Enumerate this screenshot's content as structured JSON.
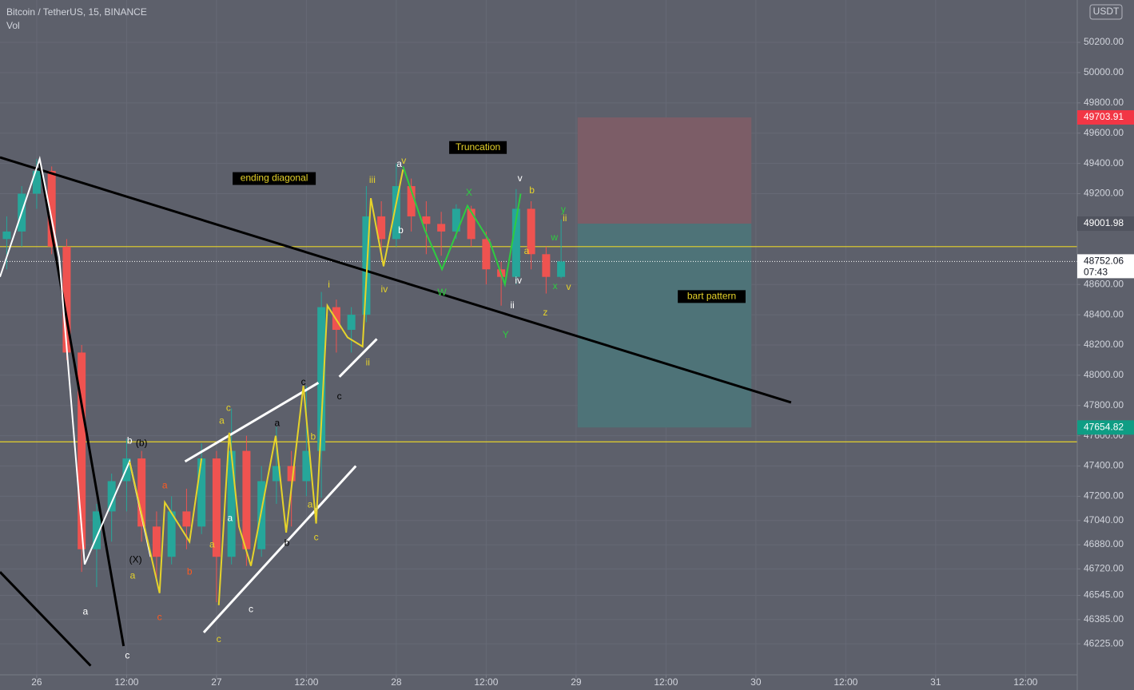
{
  "chart_data": {
    "type": "candlestick",
    "title": "Bitcoin / TetherUS, 15, BINANCE",
    "subtitle": "Vol",
    "currency": "USDT",
    "countdown": "07:43",
    "grid": true,
    "up_color": "#26a69a",
    "down_color": "#ef5350",
    "xlim": [
      -4.9,
      138.9
    ],
    "ylim": [
      46020,
      50480
    ],
    "xticks": [
      {
        "value": 0,
        "label": "26"
      },
      {
        "value": 12,
        "label": "12:00"
      },
      {
        "value": 24,
        "label": "27"
      },
      {
        "value": 36,
        "label": "12:00"
      },
      {
        "value": 48,
        "label": "28"
      },
      {
        "value": 60,
        "label": "12:00"
      },
      {
        "value": 72,
        "label": "29"
      },
      {
        "value": 84,
        "label": "12:00"
      },
      {
        "value": 96,
        "label": "30"
      },
      {
        "value": 108,
        "label": "12:00"
      },
      {
        "value": 120,
        "label": "31"
      },
      {
        "value": 132,
        "label": "12:00"
      }
    ],
    "yticks": [
      {
        "value": 50200,
        "label": "50200.00"
      },
      {
        "value": 50000,
        "label": "50000.00"
      },
      {
        "value": 49800,
        "label": "49800.00"
      },
      {
        "value": 49600,
        "label": "49600.00"
      },
      {
        "value": 49400,
        "label": "49400.00"
      },
      {
        "value": 49200,
        "label": "49200.00"
      },
      {
        "value": 48600,
        "label": "48600.00"
      },
      {
        "value": 48400,
        "label": "48400.00"
      },
      {
        "value": 48200,
        "label": "48200.00"
      },
      {
        "value": 48000,
        "label": "48000.00"
      },
      {
        "value": 47800,
        "label": "47800.00"
      },
      {
        "value": 47600,
        "label": "47600.00"
      },
      {
        "value": 47400,
        "label": "47400.00"
      },
      {
        "value": 47200,
        "label": "47200.00"
      },
      {
        "value": 47040,
        "label": "47040.00"
      },
      {
        "value": 46880,
        "label": "46880.00"
      },
      {
        "value": 46720,
        "label": "46720.00"
      },
      {
        "value": 46545,
        "label": "46545.00"
      },
      {
        "value": 46385,
        "label": "46385.00"
      },
      {
        "value": 46225,
        "label": "46225.00"
      }
    ],
    "x": [
      -4,
      -2,
      0,
      2,
      4,
      6,
      8,
      10,
      12,
      14,
      16,
      18,
      20,
      22,
      24,
      26,
      28,
      30,
      32,
      34,
      36,
      38,
      40,
      42,
      44,
      46,
      48,
      50,
      52,
      54,
      56,
      58,
      60,
      62,
      64,
      66,
      68,
      70
    ],
    "open": [
      48900,
      48950,
      49200,
      49350,
      48850,
      48150,
      46850,
      47100,
      47300,
      47450,
      47000,
      46800,
      47100,
      47000,
      47450,
      46800,
      47500,
      46850,
      47300,
      47400,
      47300,
      47500,
      48450,
      48300,
      48400,
      49050,
      48900,
      49250,
      49050,
      49000,
      48950,
      49100,
      48900,
      48700,
      48650,
      49100,
      48800,
      48650
    ],
    "high": [
      49050,
      49250,
      49430,
      49380,
      48900,
      48200,
      47150,
      47350,
      47580,
      47500,
      47100,
      47200,
      47250,
      47550,
      47500,
      47780,
      47600,
      47400,
      47660,
      47500,
      47930,
      48550,
      48500,
      48450,
      49250,
      49150,
      49400,
      49300,
      49150,
      49080,
      49130,
      49120,
      48950,
      48750,
      49230,
      49150,
      48850,
      49030
    ],
    "low": [
      48700,
      48850,
      49100,
      48800,
      48100,
      46700,
      46600,
      46900,
      47100,
      46900,
      46650,
      46750,
      46850,
      46950,
      46500,
      46750,
      46740,
      46800,
      47150,
      47000,
      47200,
      47190,
      48150,
      48150,
      48350,
      48760,
      48850,
      48950,
      48800,
      48790,
      48900,
      48850,
      48600,
      48460,
      48600,
      48700,
      48540,
      48640
    ],
    "close": [
      48950,
      49200,
      49350,
      48850,
      48150,
      46850,
      47100,
      47300,
      47450,
      47000,
      46800,
      47100,
      47000,
      47450,
      46800,
      47500,
      46850,
      47300,
      47400,
      47300,
      47500,
      48450,
      48300,
      48400,
      49050,
      48900,
      49250,
      49050,
      49000,
      48950,
      49100,
      48900,
      48700,
      48650,
      49100,
      48800,
      48650,
      48752.06
    ],
    "hlines": [
      {
        "value": 48850,
        "color": "#e6d32a"
      },
      {
        "value": 47560,
        "color": "#e6d32a"
      }
    ],
    "last_price_line": 48752.06,
    "position": {
      "x": [
        72.2,
        95.4
      ],
      "stop": 49703.91,
      "entry": 49001.98,
      "target": 47654.82,
      "stop_color": "#7c5d67",
      "target_color": "#4e7378"
    },
    "price_labels": [
      {
        "value": 49703.91,
        "color": "#f23645"
      },
      {
        "value": 49001.98,
        "color": "#50535e"
      },
      {
        "value": 48752.06,
        "color": "#ffffff"
      },
      {
        "value": 47654.82,
        "color": "#0f9d84"
      }
    ],
    "trendlines": [
      {
        "color": "#000000",
        "x": [
          -4.9,
          100.7
        ],
        "y": [
          49440,
          47820
        ]
      },
      {
        "color": "#000000",
        "x": [
          0.4,
          11.6
        ],
        "y": [
          49400,
          46210
        ]
      },
      {
        "color": "#000000",
        "x": [
          -4.9,
          7.2
        ],
        "y": [
          46700,
          46080
        ]
      },
      {
        "color": "#ffffff",
        "x": [
          19.8,
          37.6
        ],
        "y": [
          47430,
          47950
        ]
      },
      {
        "color": "#ffffff",
        "x": [
          22.3,
          42.6
        ],
        "y": [
          46300,
          47400
        ]
      },
      {
        "color": "#ffffff",
        "x": [
          40.4,
          45.4
        ],
        "y": [
          47990,
          48240
        ]
      }
    ],
    "waves": [
      {
        "color": "#ffffff",
        "x": [
          -4.9,
          0.4,
          3,
          6.4,
          12.4,
          15.2
        ],
        "y": [
          48650,
          49430,
          48780,
          46750,
          47430,
          46800
        ]
      },
      {
        "color": "#e6d32a",
        "x": [
          12.4,
          16.4,
          17.1,
          20.4,
          22
        ],
        "y": [
          47430,
          46560,
          47160,
          46900,
          47450
        ]
      },
      {
        "color": "#e6d32a",
        "x": [
          24.3,
          25.7,
          27,
          28.6,
          31.9,
          33.3,
          35.6,
          37.3,
          38.8,
          41.5,
          43.5,
          44.6,
          46.3,
          48.9
        ],
        "y": [
          46480,
          47620,
          47000,
          46740,
          47600,
          46960,
          47930,
          47020,
          48460,
          48250,
          48190,
          49170,
          48720,
          49360
        ]
      },
      {
        "color": "#2ecc40",
        "x": [
          48.9,
          51.8,
          54.1,
          57.5,
          60.5,
          62.5,
          64.6
        ],
        "y": [
          49380,
          48960,
          48700,
          49120,
          48880,
          48600,
          49200
        ]
      }
    ],
    "annotations": [
      {
        "text": "ending diagonal",
        "x": 31.7,
        "y": 49300,
        "color": "#e6d32a",
        "background": "#000000"
      },
      {
        "text": "Truncation",
        "x": 58.9,
        "y": 49505,
        "color": "#e6d32a",
        "background": "#000000"
      },
      {
        "text": "bart pattern",
        "x": 90.1,
        "y": 48520,
        "color": "#e6d32a",
        "background": "#000000"
      },
      {
        "text": "W",
        "x": 54.1,
        "y": 48545,
        "color": "#2ecc40"
      },
      {
        "text": "X",
        "x": 57.7,
        "y": 49204,
        "color": "#2ecc40"
      },
      {
        "text": "Y",
        "x": 62.6,
        "y": 48265,
        "color": "#2ecc40"
      },
      {
        "text": "(b)",
        "x": 14.0,
        "y": 47548,
        "color": "#000000"
      },
      {
        "text": "(X)",
        "x": 13.2,
        "y": 46779,
        "color": "#000000"
      },
      {
        "text": "a",
        "x": 6.5,
        "y": 46436,
        "color": "#ffffff"
      },
      {
        "text": "b",
        "x": 12.4,
        "y": 47564,
        "color": "#ffffff"
      },
      {
        "text": "c",
        "x": 12.1,
        "y": 46146,
        "color": "#ffffff"
      },
      {
        "text": "c",
        "x": 25.6,
        "y": 47780,
        "color": "#e6d32a"
      },
      {
        "text": "a",
        "x": 24.7,
        "y": 47696,
        "color": "#e6d32a"
      },
      {
        "text": "c",
        "x": 24.3,
        "y": 46252,
        "color": "#e6d32a"
      },
      {
        "text": "c",
        "x": 28.6,
        "y": 46452,
        "color": "#ffffff"
      },
      {
        "text": "a",
        "x": 32.1,
        "y": 47680,
        "color": "#000000"
      },
      {
        "text": "c",
        "x": 35.6,
        "y": 47954,
        "color": "#000000"
      },
      {
        "text": "c",
        "x": 37.3,
        "y": 46926,
        "color": "#e6d32a"
      },
      {
        "text": "a",
        "x": 36.5,
        "y": 47143,
        "color": "#e6d32a"
      },
      {
        "text": "b",
        "x": 36.9,
        "y": 47591,
        "color": "#e6d32a"
      },
      {
        "text": "i",
        "x": 39.0,
        "y": 48597,
        "color": "#e6d32a"
      },
      {
        "text": "ii",
        "x": 44.2,
        "y": 48081,
        "color": "#e6d32a"
      },
      {
        "text": "iii",
        "x": 44.8,
        "y": 49288,
        "color": "#e6d32a"
      },
      {
        "text": "iv",
        "x": 46.4,
        "y": 48566,
        "color": "#e6d32a"
      },
      {
        "text": "v",
        "x": 49.0,
        "y": 49415,
        "color": "#e6d32a"
      },
      {
        "text": "a",
        "x": 48.4,
        "y": 49393,
        "color": "#ffffff"
      },
      {
        "text": "b",
        "x": 48.6,
        "y": 48956,
        "color": "#ffffff"
      },
      {
        "text": "c",
        "x": 40.4,
        "y": 47859,
        "color": "#000000"
      },
      {
        "text": "v",
        "x": 64.5,
        "y": 49299,
        "color": "#ffffff"
      },
      {
        "text": "b",
        "x": 66.1,
        "y": 49220,
        "color": "#e6d32a"
      },
      {
        "text": "a",
        "x": 65.4,
        "y": 48819,
        "color": "#e6d32a"
      },
      {
        "text": "ii",
        "x": 63.5,
        "y": 48460,
        "color": "#ffffff"
      },
      {
        "text": "iv",
        "x": 64.3,
        "y": 48624,
        "color": "#ffffff"
      },
      {
        "text": "y",
        "x": 70.3,
        "y": 49093,
        "color": "#2ecc40"
      },
      {
        "text": "x",
        "x": 69.2,
        "y": 48587,
        "color": "#2ecc40"
      },
      {
        "text": "w",
        "x": 69.1,
        "y": 48909,
        "color": "#2ecc40"
      },
      {
        "text": "z",
        "x": 67.9,
        "y": 48413,
        "color": "#e6d32a"
      },
      {
        "text": "v",
        "x": 71.0,
        "y": 48582,
        "color": "#e6d32a"
      },
      {
        "text": "ii",
        "x": 70.5,
        "y": 49035,
        "color": "#e6d32a"
      },
      {
        "text": "b",
        "x": 20.4,
        "y": 46700,
        "color": "#ff5a1f"
      },
      {
        "text": "a",
        "x": 17.1,
        "y": 47269,
        "color": "#ff5a1f"
      },
      {
        "text": "c",
        "x": 16.4,
        "y": 46399,
        "color": "#ff5a1f"
      },
      {
        "text": "a",
        "x": 12.8,
        "y": 46673,
        "color": "#e6d32a"
      },
      {
        "text": "a",
        "x": 23.4,
        "y": 46879,
        "color": "#e6d32a"
      },
      {
        "text": "a",
        "x": 25.8,
        "y": 47053,
        "color": "#ffffff"
      },
      {
        "text": "b",
        "x": 33.4,
        "y": 46890,
        "color": "#000000"
      }
    ]
  }
}
